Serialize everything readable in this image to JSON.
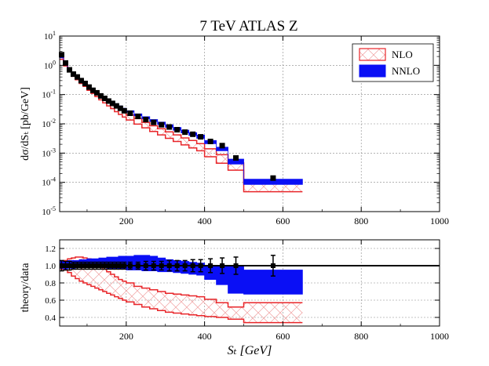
{
  "chart_data": [
    {
      "type": "line",
      "title": "7 TeV ATLAS Z",
      "xlabel": "",
      "ylabel": "dσ/dSₜ [pb/GeV]",
      "xlim": [
        30,
        1000
      ],
      "yscale": "log",
      "ylim_exp": [
        -5,
        1
      ],
      "x_ticks": [
        "200",
        "400",
        "600",
        "800",
        "1000"
      ],
      "y_ticks": [
        "10-5",
        "10-4",
        "10-3",
        "10-2",
        "10-1",
        "100",
        "101"
      ],
      "legend": {
        "placement": "top-right",
        "entries": [
          "NLO",
          "NNLO"
        ]
      },
      "bin_edges": [
        30,
        40,
        50,
        60,
        70,
        80,
        90,
        100,
        110,
        120,
        130,
        140,
        150,
        160,
        170,
        180,
        190,
        200,
        220,
        240,
        260,
        280,
        300,
        320,
        340,
        360,
        380,
        400,
        430,
        460,
        500,
        650,
        1000
      ],
      "data": [
        2.3,
        1.2,
        0.7,
        0.5,
        0.4,
        0.3,
        0.24,
        0.18,
        0.14,
        0.115,
        0.09,
        0.074,
        0.06,
        0.05,
        0.041,
        0.034,
        0.028,
        0.023,
        0.018,
        0.014,
        0.0112,
        0.0093,
        0.0078,
        0.0063,
        0.0052,
        0.0044,
        0.0036,
        0.0025,
        0.0018,
        0.00068,
        0.00014
      ],
      "nnlo_band": [
        [
          1.8,
          2.4
        ],
        [
          1.1,
          1.3
        ],
        [
          0.68,
          0.76
        ],
        [
          0.5,
          0.55
        ],
        [
          0.4,
          0.44
        ],
        [
          0.3,
          0.33
        ],
        [
          0.24,
          0.27
        ],
        [
          0.19,
          0.21
        ],
        [
          0.15,
          0.165
        ],
        [
          0.12,
          0.132
        ],
        [
          0.096,
          0.105
        ],
        [
          0.078,
          0.087
        ],
        [
          0.064,
          0.071
        ],
        [
          0.053,
          0.059
        ],
        [
          0.044,
          0.049
        ],
        [
          0.036,
          0.041
        ],
        [
          0.03,
          0.034
        ],
        [
          0.025,
          0.028
        ],
        [
          0.019,
          0.022
        ],
        [
          0.015,
          0.0175
        ],
        [
          0.012,
          0.014
        ],
        [
          0.0095,
          0.0115
        ],
        [
          0.0076,
          0.0093
        ],
        [
          0.006,
          0.0075
        ],
        [
          0.0049,
          0.0061
        ],
        [
          0.004,
          0.005
        ],
        [
          0.0032,
          0.0041
        ],
        [
          0.0021,
          0.0027
        ],
        [
          0.0012,
          0.0016
        ],
        [
          0.00042,
          0.00062
        ],
        [
          8.5e-05,
          0.000128
        ]
      ],
      "nlo_band": [
        [
          1.6,
          2.2
        ],
        [
          0.95,
          1.25
        ],
        [
          0.6,
          0.72
        ],
        [
          0.42,
          0.5
        ],
        [
          0.32,
          0.39
        ],
        [
          0.24,
          0.3
        ],
        [
          0.19,
          0.24
        ],
        [
          0.14,
          0.18
        ],
        [
          0.11,
          0.14
        ],
        [
          0.085,
          0.11
        ],
        [
          0.066,
          0.086
        ],
        [
          0.052,
          0.069
        ],
        [
          0.041,
          0.055
        ],
        [
          0.033,
          0.045
        ],
        [
          0.026,
          0.036
        ],
        [
          0.021,
          0.03
        ],
        [
          0.017,
          0.025
        ],
        [
          0.0135,
          0.02
        ],
        [
          0.0098,
          0.015
        ],
        [
          0.0073,
          0.0112
        ],
        [
          0.0055,
          0.0086
        ],
        [
          0.0042,
          0.0068
        ],
        [
          0.0032,
          0.0053
        ],
        [
          0.0025,
          0.0042
        ],
        [
          0.0019,
          0.0033
        ],
        [
          0.0015,
          0.0027
        ],
        [
          0.0012,
          0.0021
        ],
        [
          0.00075,
          0.0014
        ],
        [
          0.00045,
          0.00088
        ],
        [
          0.00026,
          0.00046
        ],
        [
          4.8e-05,
          9e-05
        ]
      ]
    },
    {
      "type": "line",
      "title": "",
      "xlabel": "Sₜ [GeV]",
      "ylabel": "theory/data",
      "xlim": [
        30,
        1000
      ],
      "ylim": [
        0.3,
        1.3
      ],
      "x_ticks": [
        "200",
        "400",
        "600",
        "800",
        "1000"
      ],
      "y_ticks": [
        "0.4",
        "0.6",
        "0.8",
        "1.0",
        "1.2"
      ],
      "bin_edges": [
        30,
        40,
        50,
        60,
        70,
        80,
        90,
        100,
        110,
        120,
        130,
        140,
        150,
        160,
        170,
        180,
        190,
        200,
        220,
        240,
        260,
        280,
        300,
        320,
        340,
        360,
        380,
        400,
        430,
        460,
        500,
        650,
        1000
      ],
      "data_errors": [
        0.06,
        0.05,
        0.05,
        0.04,
        0.04,
        0.04,
        0.04,
        0.04,
        0.04,
        0.04,
        0.04,
        0.04,
        0.04,
        0.04,
        0.04,
        0.04,
        0.04,
        0.04,
        0.04,
        0.05,
        0.05,
        0.05,
        0.06,
        0.06,
        0.06,
        0.07,
        0.07,
        0.08,
        0.09,
        0.1,
        0.12
      ],
      "nnlo_ratio": [
        [
          0.97,
          1.05
        ],
        [
          0.96,
          1.05
        ],
        [
          0.97,
          1.06
        ],
        [
          0.97,
          1.06
        ],
        [
          0.98,
          1.06
        ],
        [
          0.98,
          1.07
        ],
        [
          0.98,
          1.07
        ],
        [
          0.98,
          1.08
        ],
        [
          0.98,
          1.08
        ],
        [
          0.98,
          1.08
        ],
        [
          0.98,
          1.09
        ],
        [
          0.98,
          1.09
        ],
        [
          0.97,
          1.1
        ],
        [
          0.97,
          1.1
        ],
        [
          0.97,
          1.1
        ],
        [
          0.96,
          1.11
        ],
        [
          0.96,
          1.11
        ],
        [
          0.95,
          1.11
        ],
        [
          0.95,
          1.12
        ],
        [
          0.94,
          1.12
        ],
        [
          0.94,
          1.11
        ],
        [
          0.93,
          1.09
        ],
        [
          0.93,
          1.07
        ],
        [
          0.92,
          1.06
        ],
        [
          0.91,
          1.05
        ],
        [
          0.9,
          1.04
        ],
        [
          0.89,
          1.03
        ],
        [
          0.84,
          1.0
        ],
        [
          0.78,
          0.99
        ],
        [
          0.68,
          0.99
        ],
        [
          0.67,
          0.95
        ]
      ],
      "nlo_ratio": [
        [
          0.96,
          1.05
        ],
        [
          0.95,
          1.06
        ],
        [
          0.92,
          1.08
        ],
        [
          0.88,
          1.09
        ],
        [
          0.85,
          1.1
        ],
        [
          0.82,
          1.1
        ],
        [
          0.8,
          1.09
        ],
        [
          0.78,
          1.08
        ],
        [
          0.76,
          1.06
        ],
        [
          0.74,
          1.03
        ],
        [
          0.72,
          1.0
        ],
        [
          0.7,
          0.96
        ],
        [
          0.68,
          0.93
        ],
        [
          0.66,
          0.9
        ],
        [
          0.64,
          0.87
        ],
        [
          0.62,
          0.84
        ],
        [
          0.6,
          0.82
        ],
        [
          0.58,
          0.8
        ],
        [
          0.55,
          0.76
        ],
        [
          0.52,
          0.74
        ],
        [
          0.5,
          0.72
        ],
        [
          0.48,
          0.7
        ],
        [
          0.46,
          0.68
        ],
        [
          0.45,
          0.67
        ],
        [
          0.44,
          0.66
        ],
        [
          0.43,
          0.65
        ],
        [
          0.42,
          0.64
        ],
        [
          0.41,
          0.61
        ],
        [
          0.4,
          0.57
        ],
        [
          0.38,
          0.52
        ],
        [
          0.34,
          0.57
        ]
      ]
    }
  ],
  "colors": {
    "nlo": "#e8262a",
    "nlo_fill": "#f7c4c4",
    "nnlo": "#0a0ff5",
    "data": "#000000"
  }
}
